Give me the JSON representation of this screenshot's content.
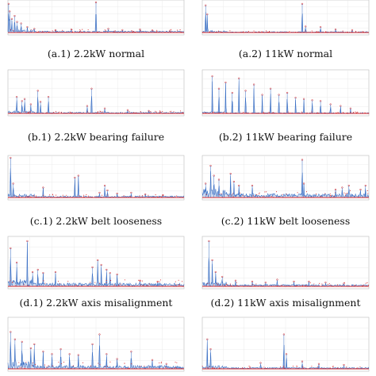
{
  "chart_data": [
    {
      "type": "line",
      "caption": "(a.1) 2.2kW normal",
      "series": [
        {
          "name": "",
          "color": "#3a6fc4"
        },
        {
          "name": "",
          "color": "#d62728"
        }
      ],
      "peaks": [
        [
          0.4,
          0.95
        ],
        [
          1.0,
          0.7
        ],
        [
          2.2,
          0.45
        ],
        [
          3.8,
          0.55
        ],
        [
          5.2,
          0.35
        ],
        [
          7.5,
          0.3
        ],
        [
          11,
          0.18
        ],
        [
          15,
          0.12
        ],
        [
          27,
          0.08
        ],
        [
          36,
          0.1
        ],
        [
          50,
          1.0
        ],
        [
          57,
          0.12
        ],
        [
          65,
          0.08
        ],
        [
          75,
          0.1
        ],
        [
          82,
          0.07
        ],
        [
          92,
          0.06
        ]
      ],
      "noise": 0.05,
      "xlim": [
        0,
        100
      ],
      "ylim": [
        0,
        1
      ]
    },
    {
      "type": "line",
      "caption": "(a.2) 11kW normal",
      "series": [
        {
          "name": "",
          "color": "#3a6fc4"
        },
        {
          "name": "",
          "color": "#d62728"
        }
      ],
      "peaks": [
        [
          2.0,
          0.9
        ],
        [
          3.0,
          0.6
        ],
        [
          60,
          0.95
        ],
        [
          62,
          0.2
        ],
        [
          71,
          0.18
        ],
        [
          80,
          0.1
        ],
        [
          90,
          0.08
        ]
      ],
      "noise": 0.03,
      "xlim": [
        0,
        100
      ],
      "ylim": [
        0,
        1
      ]
    },
    {
      "type": "line",
      "caption": "(b.1) 2.2kW bearing failure",
      "series": [
        {
          "name": "",
          "color": "#3a6fc4"
        },
        {
          "name": "",
          "color": "#d62728"
        }
      ],
      "peaks": [
        [
          5,
          0.4
        ],
        [
          8,
          0.3
        ],
        [
          9.5,
          0.35
        ],
        [
          13,
          0.22
        ],
        [
          17,
          0.55
        ],
        [
          18.5,
          0.28
        ],
        [
          23,
          0.4
        ],
        [
          45,
          0.18
        ],
        [
          47.5,
          0.6
        ],
        [
          55,
          0.12
        ],
        [
          68,
          0.08
        ],
        [
          80,
          0.06
        ]
      ],
      "noise": 0.03,
      "xlim": [
        0,
        100
      ],
      "ylim": [
        0,
        1
      ]
    },
    {
      "type": "line",
      "caption": "(b.2) 11kW bearing failure",
      "series": [
        {
          "name": "",
          "color": "#3a6fc4"
        },
        {
          "name": "",
          "color": "#d62728"
        }
      ],
      "peaks": [
        [
          6,
          0.9
        ],
        [
          10,
          0.6
        ],
        [
          14,
          0.75
        ],
        [
          18,
          0.5
        ],
        [
          22,
          0.85
        ],
        [
          26,
          0.55
        ],
        [
          31,
          0.7
        ],
        [
          36,
          0.45
        ],
        [
          41,
          0.6
        ],
        [
          46,
          0.45
        ],
        [
          51,
          0.5
        ],
        [
          56,
          0.38
        ],
        [
          61,
          0.35
        ],
        [
          66,
          0.32
        ],
        [
          71,
          0.3
        ],
        [
          77,
          0.22
        ],
        [
          83,
          0.18
        ],
        [
          89,
          0.12
        ]
      ],
      "noise": 0.02,
      "xlim": [
        0,
        100
      ],
      "ylim": [
        0,
        1
      ]
    },
    {
      "type": "line",
      "caption": "(c.1) 2.2kW belt looseness",
      "series": [
        {
          "name": "",
          "color": "#3a6fc4"
        },
        {
          "name": "",
          "color": "#d62728"
        }
      ],
      "peaks": [
        [
          1.5,
          1.0
        ],
        [
          3,
          0.35
        ],
        [
          20,
          0.25
        ],
        [
          38,
          0.5
        ],
        [
          40,
          0.55
        ],
        [
          52,
          0.12
        ],
        [
          55,
          0.3
        ],
        [
          56.5,
          0.18
        ],
        [
          62,
          0.1
        ],
        [
          70,
          0.12
        ],
        [
          78,
          0.08
        ],
        [
          88,
          0.06
        ]
      ],
      "noise": 0.04,
      "xlim": [
        0,
        100
      ],
      "ylim": [
        0,
        1
      ]
    },
    {
      "type": "line",
      "caption": "(c.2) 11kW belt looseness",
      "series": [
        {
          "name": "",
          "color": "#3a6fc4"
        },
        {
          "name": "",
          "color": "#d62728"
        }
      ],
      "peaks": [
        [
          2,
          0.35
        ],
        [
          5,
          0.8
        ],
        [
          7,
          0.55
        ],
        [
          10,
          0.45
        ],
        [
          17,
          0.6
        ],
        [
          19,
          0.4
        ],
        [
          22,
          0.3
        ],
        [
          30,
          0.3
        ],
        [
          60,
          0.95
        ],
        [
          61,
          0.35
        ],
        [
          80,
          0.2
        ],
        [
          84,
          0.25
        ],
        [
          88,
          0.3
        ],
        [
          95,
          0.2
        ],
        [
          98,
          0.3
        ]
      ],
      "noise": 0.1,
      "xlim": [
        0,
        100
      ],
      "ylim": [
        0,
        1
      ]
    },
    {
      "type": "line",
      "caption": "(d.1) 2.2kW axis misalignment",
      "series": [
        {
          "name": "",
          "color": "#3a6fc4"
        },
        {
          "name": "",
          "color": "#d62728"
        }
      ],
      "peaks": [
        [
          1.5,
          0.8
        ],
        [
          5,
          0.5
        ],
        [
          11,
          0.95
        ],
        [
          14,
          0.3
        ],
        [
          17,
          0.35
        ],
        [
          20,
          0.28
        ],
        [
          27,
          0.3
        ],
        [
          48,
          0.4
        ],
        [
          51,
          0.55
        ],
        [
          53,
          0.45
        ],
        [
          56,
          0.35
        ],
        [
          58,
          0.28
        ],
        [
          62,
          0.25
        ],
        [
          75,
          0.12
        ],
        [
          85,
          0.1
        ]
      ],
      "noise": 0.07,
      "xlim": [
        0,
        100
      ],
      "ylim": [
        0,
        1
      ]
    },
    {
      "type": "line",
      "caption": "(d.2) 11kW axis misalignment",
      "series": [
        {
          "name": "",
          "color": "#3a6fc4"
        },
        {
          "name": "",
          "color": "#d62728"
        }
      ],
      "peaks": [
        [
          4,
          0.95
        ],
        [
          6,
          0.55
        ],
        [
          8,
          0.3
        ],
        [
          12,
          0.2
        ],
        [
          20,
          0.12
        ],
        [
          30,
          0.1
        ],
        [
          38,
          0.08
        ],
        [
          45,
          0.14
        ],
        [
          55,
          0.1
        ],
        [
          64,
          0.1
        ],
        [
          74,
          0.08
        ],
        [
          85,
          0.06
        ]
      ],
      "noise": 0.04,
      "xlim": [
        0,
        100
      ],
      "ylim": [
        0,
        1
      ]
    },
    {
      "type": "line",
      "caption": "",
      "series": [
        {
          "name": "",
          "color": "#3a6fc4"
        },
        {
          "name": "",
          "color": "#d62728"
        }
      ],
      "peaks": [
        [
          1.5,
          0.75
        ],
        [
          4,
          0.6
        ],
        [
          8,
          0.55
        ],
        [
          13,
          0.42
        ],
        [
          15,
          0.5
        ],
        [
          20,
          0.35
        ],
        [
          25,
          0.3
        ],
        [
          30,
          0.4
        ],
        [
          35,
          0.3
        ],
        [
          40,
          0.28
        ],
        [
          48,
          0.5
        ],
        [
          52,
          0.7
        ],
        [
          56,
          0.3
        ],
        [
          62,
          0.2
        ],
        [
          70,
          0.35
        ],
        [
          82,
          0.18
        ],
        [
          90,
          0.1
        ]
      ],
      "noise": 0.07,
      "xlim": [
        0,
        100
      ],
      "ylim": [
        0,
        1
      ]
    },
    {
      "type": "line",
      "caption": "",
      "series": [
        {
          "name": "",
          "color": "#3a6fc4"
        },
        {
          "name": "",
          "color": "#d62728"
        }
      ],
      "peaks": [
        [
          3,
          0.6
        ],
        [
          5,
          0.4
        ],
        [
          35,
          0.12
        ],
        [
          49,
          0.7
        ],
        [
          50.5,
          0.3
        ],
        [
          60,
          0.15
        ],
        [
          70,
          0.1
        ],
        [
          85,
          0.08
        ]
      ],
      "noise": 0.03,
      "xlim": [
        0,
        100
      ],
      "ylim": [
        0,
        1
      ]
    }
  ]
}
